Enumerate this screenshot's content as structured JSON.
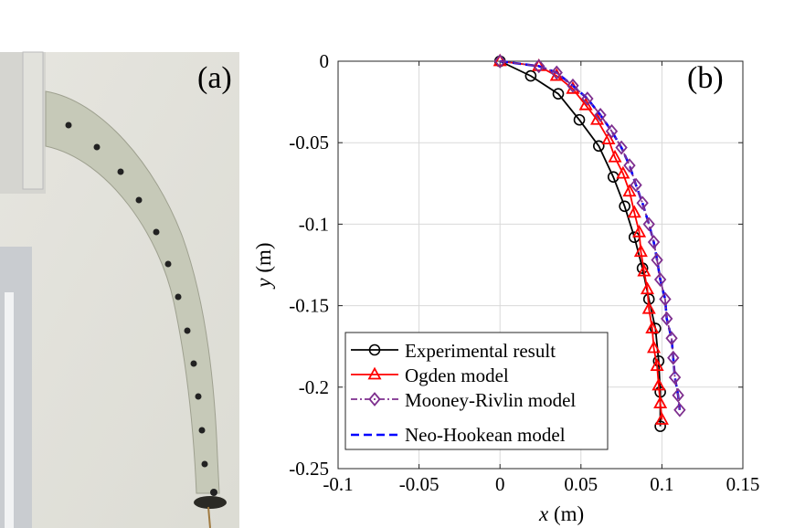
{
  "panel_a_label": "(a)",
  "panel_b_label": "(b)",
  "chart_data": {
    "type": "line",
    "xlabel_var": "x",
    "xlabel_unit": "(m)",
    "ylabel_var": "y",
    "ylabel_unit": "(m)",
    "xlim": [
      -0.1,
      0.15
    ],
    "ylim": [
      -0.25,
      0
    ],
    "xticks": [
      "-0.1",
      "-0.05",
      "0",
      "0.05",
      "0.1",
      "0.15"
    ],
    "yticks": [
      "0",
      "-0.05",
      "-0.1",
      "-0.15",
      "-0.2",
      "-0.25"
    ],
    "grid": true,
    "legend_position": "bottom-left",
    "series": [
      {
        "name": "Experimental result",
        "color": "#000000",
        "marker": "circle",
        "dash": "solid",
        "x": [
          0,
          0.019,
          0.036,
          0.049,
          0.061,
          0.07,
          0.077,
          0.083,
          0.088,
          0.092,
          0.096,
          0.098,
          0.099,
          0.099
        ],
        "y": [
          0,
          -0.009,
          -0.02,
          -0.036,
          -0.052,
          -0.071,
          -0.089,
          -0.108,
          -0.127,
          -0.146,
          -0.164,
          -0.184,
          -0.203,
          -0.224
        ]
      },
      {
        "name": "Ogden model",
        "color": "#ff0000",
        "marker": "triangle",
        "dash": "solid",
        "x": [
          0,
          0.024,
          0.035,
          0.045,
          0.053,
          0.06,
          0.067,
          0.071,
          0.076,
          0.08,
          0.083,
          0.086,
          0.087,
          0.089,
          0.091,
          0.092,
          0.094,
          0.095,
          0.097,
          0.098,
          0.099,
          0.1
        ],
        "y": [
          0,
          -0.003,
          -0.009,
          -0.017,
          -0.027,
          -0.036,
          -0.048,
          -0.059,
          -0.069,
          -0.08,
          -0.093,
          -0.105,
          -0.117,
          -0.129,
          -0.14,
          -0.152,
          -0.164,
          -0.176,
          -0.187,
          -0.199,
          -0.21,
          -0.22
        ]
      },
      {
        "name": "Mooney-Rivlin model",
        "color": "#7e2f8e",
        "marker": "diamond",
        "dash": "dashdot",
        "x": [
          0,
          0.024,
          0.035,
          0.045,
          0.054,
          0.062,
          0.069,
          0.075,
          0.08,
          0.084,
          0.088,
          0.092,
          0.095,
          0.097,
          0.099,
          0.102,
          0.103,
          0.106,
          0.107,
          0.108,
          0.11,
          0.111
        ],
        "y": [
          0,
          -0.003,
          -0.007,
          -0.015,
          -0.023,
          -0.033,
          -0.043,
          -0.053,
          -0.064,
          -0.076,
          -0.087,
          -0.1,
          -0.111,
          -0.122,
          -0.134,
          -0.146,
          -0.158,
          -0.17,
          -0.182,
          -0.194,
          -0.205,
          -0.214
        ]
      },
      {
        "name": "Neo-Hookean model",
        "color": "#0000ff",
        "marker": "none",
        "dash": "dashed",
        "x": [
          0,
          0.024,
          0.035,
          0.045,
          0.054,
          0.062,
          0.069,
          0.075,
          0.08,
          0.084,
          0.088,
          0.092,
          0.095,
          0.097,
          0.099,
          0.102,
          0.103,
          0.106,
          0.107,
          0.108,
          0.11,
          0.111
        ],
        "y": [
          0,
          -0.003,
          -0.007,
          -0.015,
          -0.023,
          -0.033,
          -0.043,
          -0.053,
          -0.064,
          -0.076,
          -0.087,
          -0.1,
          -0.111,
          -0.122,
          -0.134,
          -0.146,
          -0.158,
          -0.17,
          -0.182,
          -0.194,
          -0.205,
          -0.214
        ]
      }
    ]
  }
}
